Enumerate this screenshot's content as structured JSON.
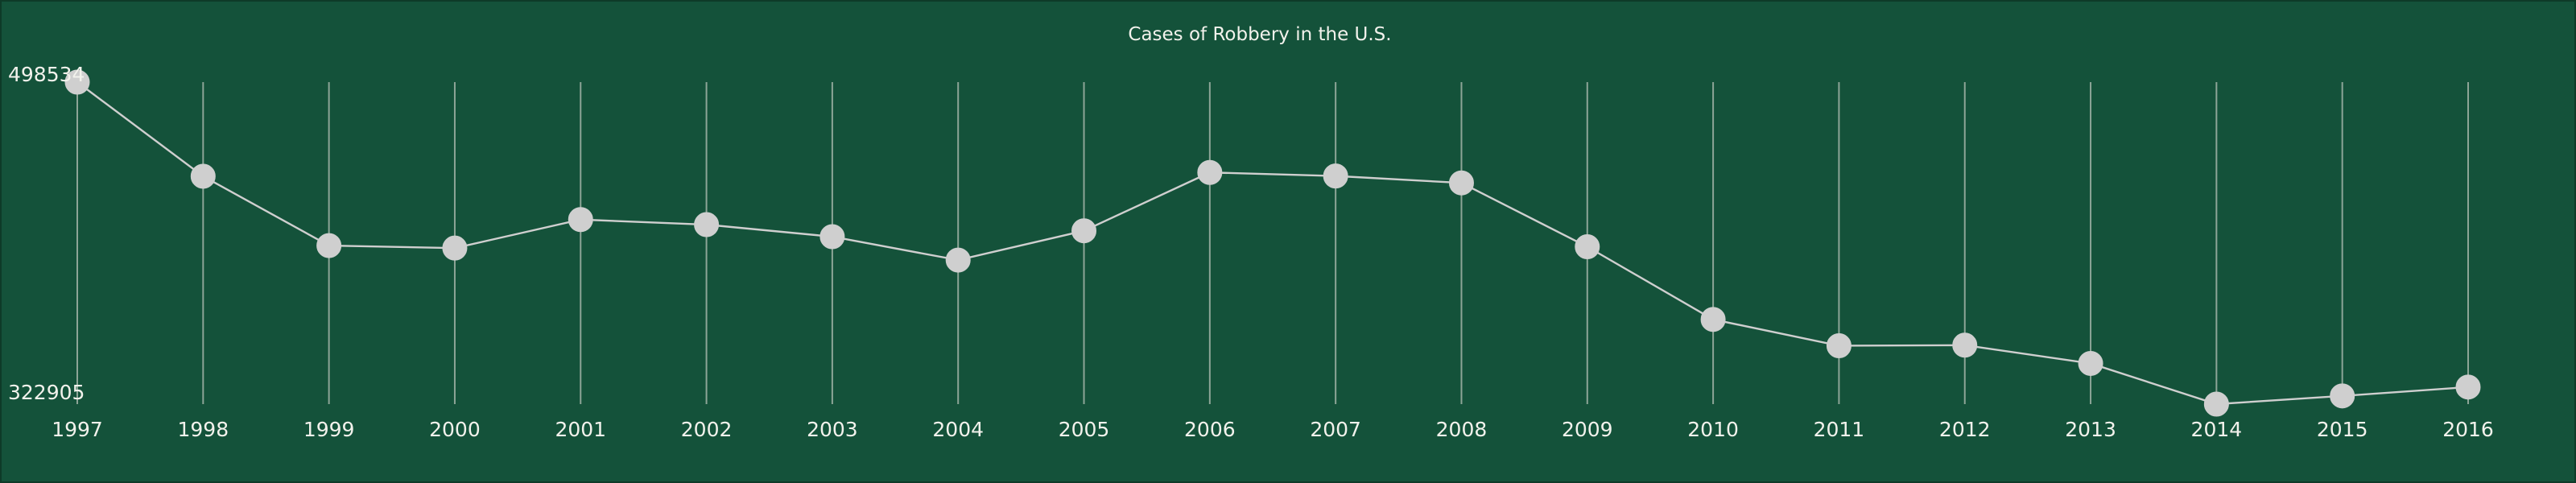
{
  "chart_data": {
    "type": "line",
    "title": "Cases of Robbery in the U.S.",
    "xlabel": "",
    "ylabel": "",
    "x": [
      "1997",
      "1998",
      "1999",
      "2000",
      "2001",
      "2002",
      "2003",
      "2004",
      "2005",
      "2006",
      "2007",
      "2008",
      "2009",
      "2010",
      "2011",
      "2012",
      "2013",
      "2014",
      "2015",
      "2016"
    ],
    "series": [
      {
        "values": [
          498534,
          447186,
          409371,
          408016,
          423557,
          420806,
          414235,
          401470,
          417438,
          449246,
          447324,
          443563,
          408742,
          369089,
          354746,
          355051,
          345093,
          322905,
          327374,
          332198
        ]
      }
    ],
    "y_tick_labels": [
      "498534",
      "322905"
    ],
    "ylim": [
      322905,
      498534
    ],
    "grid": "vertical",
    "legend": "none",
    "colors": {
      "background": "#14523a",
      "line": "#cfcfcf",
      "point": "#cfcfcf",
      "grid": "#8da597",
      "text": "#f2f2ec"
    }
  }
}
